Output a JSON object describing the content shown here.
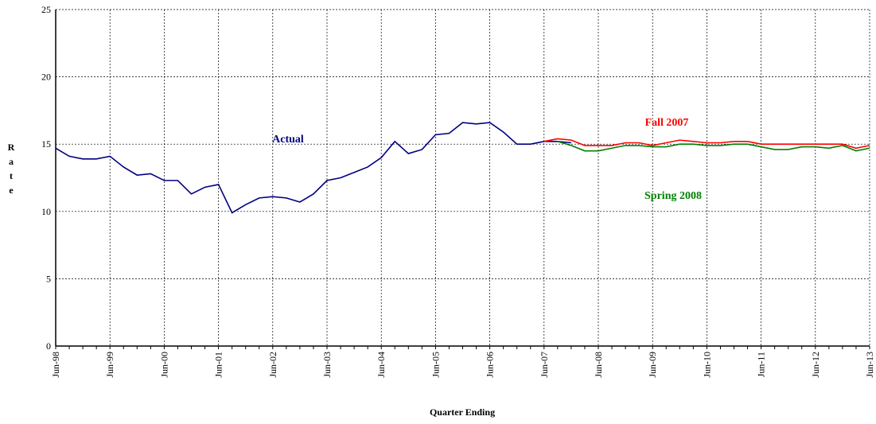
{
  "chart_data": {
    "type": "line",
    "y_label": "Rate",
    "x_label": "Quarter Ending",
    "categories": [
      "Jun-98",
      null,
      null,
      null,
      "Jun-99",
      null,
      null,
      null,
      "Jun-00",
      null,
      null,
      null,
      "Jun-01",
      null,
      null,
      null,
      "Jun-02",
      null,
      null,
      null,
      "Jun-03",
      null,
      null,
      null,
      "Jun-04",
      null,
      null,
      null,
      "Jun-05",
      null,
      null,
      null,
      "Jun-06",
      null,
      null,
      null,
      "Jun-07",
      null,
      null,
      null,
      "Jun-08",
      null,
      null,
      null,
      "Jun-09",
      null,
      null,
      null,
      "Jun-10",
      null,
      null,
      null,
      "Jun-11",
      null,
      null,
      null,
      "Jun-12",
      null,
      null,
      null,
      "Jun-13"
    ],
    "series": [
      {
        "name": "Actual",
        "color": "#000080",
        "values": [
          14.7,
          14.1,
          13.9,
          13.9,
          14.1,
          13.3,
          12.7,
          12.8,
          12.3,
          12.3,
          11.3,
          11.8,
          12.0,
          9.9,
          10.5,
          11.0,
          11.1,
          11.0,
          10.7,
          11.3,
          12.3,
          12.5,
          12.9,
          13.3,
          14.0,
          15.2,
          14.3,
          14.6,
          15.7,
          15.8,
          16.6,
          16.5,
          16.6,
          15.9,
          15.0,
          15.0,
          15.2,
          15.2,
          15.1,
          null,
          null,
          null,
          null,
          null,
          null,
          null,
          null,
          null,
          null,
          null,
          null,
          null,
          null,
          null,
          null,
          null,
          null,
          null,
          null,
          null,
          null
        ]
      },
      {
        "name": "Fall 2007",
        "color": "#ff0000",
        "values": [
          null,
          null,
          null,
          null,
          null,
          null,
          null,
          null,
          null,
          null,
          null,
          null,
          null,
          null,
          null,
          null,
          null,
          null,
          null,
          null,
          null,
          null,
          null,
          null,
          null,
          null,
          null,
          null,
          null,
          null,
          null,
          null,
          null,
          null,
          null,
          null,
          15.2,
          15.4,
          15.3,
          14.9,
          14.9,
          14.9,
          15.1,
          15.1,
          14.9,
          15.1,
          15.3,
          15.2,
          15.1,
          15.1,
          15.2,
          15.2,
          15.0,
          15.0,
          15.0,
          15.0,
          15.0,
          15.0,
          15.0,
          14.7,
          14.9
        ]
      },
      {
        "name": "Spring 2008",
        "color": "#008000",
        "values": [
          null,
          null,
          null,
          null,
          null,
          null,
          null,
          null,
          null,
          null,
          null,
          null,
          null,
          null,
          null,
          null,
          null,
          null,
          null,
          null,
          null,
          null,
          null,
          null,
          null,
          null,
          null,
          null,
          null,
          null,
          null,
          null,
          null,
          null,
          null,
          null,
          null,
          15.2,
          14.9,
          14.5,
          14.5,
          14.7,
          14.9,
          14.9,
          14.8,
          14.8,
          15.0,
          15.0,
          14.9,
          14.9,
          15.0,
          15.0,
          14.8,
          14.6,
          14.6,
          14.8,
          14.8,
          14.7,
          14.9,
          14.5,
          14.7
        ]
      }
    ],
    "ylim": [
      0,
      25
    ],
    "yticks": [
      0,
      5,
      10,
      15,
      20,
      25
    ],
    "grid": true
  }
}
